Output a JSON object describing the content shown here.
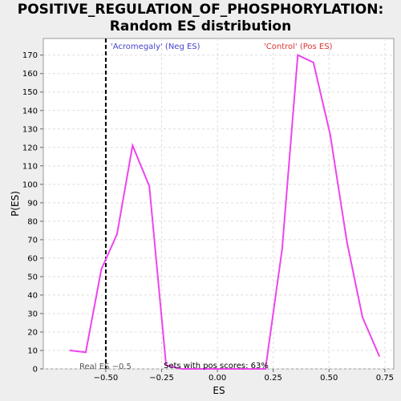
{
  "chart_data": {
    "type": "line",
    "title_line1": "POSITIVE_REGULATION_OF_PHOSPHORYLATION:",
    "title_line2": "Random ES distribution",
    "xlabel": "ES",
    "ylabel": "P(ES)",
    "xlim": [
      -0.78,
      0.79
    ],
    "ylim": [
      0,
      179
    ],
    "x_ticks": [
      -0.5,
      -0.25,
      0.0,
      0.25,
      0.5,
      0.75
    ],
    "x_tick_labels": [
      "−0.50",
      "−0.25",
      "0.00",
      "0.25",
      "0.50",
      "0.75"
    ],
    "y_ticks": [
      0,
      10,
      20,
      30,
      40,
      50,
      60,
      70,
      80,
      90,
      100,
      110,
      120,
      130,
      140,
      150,
      160,
      170
    ],
    "grid": true,
    "series": [
      {
        "color": "#ee44ee",
        "x": [
          -0.66,
          -0.59,
          -0.52,
          -0.45,
          -0.38,
          -0.305,
          -0.23,
          -0.16,
          -0.085,
          -0.01,
          0.065,
          0.14,
          0.215,
          0.29,
          0.36,
          0.43,
          0.505,
          0.58,
          0.65,
          0.725
        ],
        "y": [
          10,
          9,
          54,
          73,
          121,
          99,
          2,
          0,
          0,
          0,
          0,
          0,
          0,
          65,
          170,
          166,
          127,
          69,
          28,
          7
        ]
      }
    ],
    "vline": {
      "x": -0.5,
      "label": "Real ES −0.5",
      "style": "dashed",
      "color": "#000000"
    },
    "annotations": {
      "neg_label": "'Acromegaly' (Neg ES)",
      "neg_color": "#4444cc",
      "pos_label": "'Control' (Pos ES)",
      "pos_color": "#dd3333",
      "footer": "Sets with pos scores: 63%"
    }
  }
}
